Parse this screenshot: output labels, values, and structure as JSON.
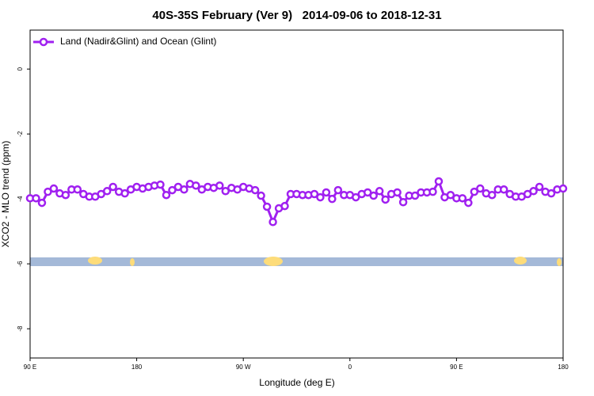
{
  "chart_data": {
    "type": "line",
    "title": "40S-35S February (Ver 9)   2014-09-06 to 2018-12-31",
    "xlabel": "Longitude (deg E)",
    "ylabel": "XCO2 - MLO trend (ppm)",
    "x": [
      90,
      95,
      100,
      105,
      110,
      115,
      120,
      125,
      130,
      135,
      140,
      145,
      150,
      155,
      160,
      165,
      170,
      175,
      180,
      185,
      190,
      195,
      200,
      205,
      210,
      215,
      220,
      225,
      230,
      235,
      240,
      245,
      250,
      255,
      260,
      265,
      270,
      275,
      280,
      285,
      290,
      295,
      300,
      305,
      310,
      315,
      320,
      325,
      330,
      335,
      340,
      345,
      350,
      355,
      360,
      365,
      370,
      375,
      380,
      385,
      390,
      395,
      400,
      405,
      410,
      415,
      420,
      425,
      430,
      435,
      440,
      445,
      450,
      455,
      460,
      465,
      470,
      475,
      480,
      485,
      490,
      495,
      500,
      505,
      510,
      515,
      520,
      525,
      530,
      535,
      540
    ],
    "series": [
      {
        "name": "Land (Nadir&Glint) and Ocean (Glint)",
        "color": "#a020f0",
        "values": [
          -3.98,
          -3.98,
          -4.12,
          -3.78,
          -3.68,
          -3.83,
          -3.88,
          -3.71,
          -3.71,
          -3.85,
          -3.93,
          -3.93,
          -3.85,
          -3.76,
          -3.63,
          -3.78,
          -3.83,
          -3.71,
          -3.63,
          -3.68,
          -3.63,
          -3.59,
          -3.56,
          -3.88,
          -3.73,
          -3.63,
          -3.71,
          -3.54,
          -3.59,
          -3.71,
          -3.63,
          -3.66,
          -3.59,
          -3.76,
          -3.66,
          -3.71,
          -3.63,
          -3.68,
          -3.73,
          -3.9,
          -4.24,
          -4.71,
          -4.29,
          -4.22,
          -3.85,
          -3.85,
          -3.88,
          -3.88,
          -3.85,
          -3.95,
          -3.8,
          -4.0,
          -3.73,
          -3.88,
          -3.88,
          -3.95,
          -3.85,
          -3.8,
          -3.9,
          -3.76,
          -4.02,
          -3.85,
          -3.8,
          -4.1,
          -3.9,
          -3.9,
          -3.8,
          -3.8,
          -3.78,
          -3.46,
          -3.95,
          -3.88,
          -3.98,
          -3.98,
          -4.12,
          -3.78,
          -3.68,
          -3.83,
          -3.88,
          -3.71,
          -3.71,
          -3.85,
          -3.93,
          -3.93,
          -3.85,
          -3.76,
          -3.63,
          -3.78,
          -3.83,
          -3.71,
          -3.68
        ]
      }
    ],
    "xlim": [
      90,
      540
    ],
    "xticks": [
      {
        "value": 90,
        "label": "90 E"
      },
      180,
      {
        "value": 270,
        "label": "90 W"
      },
      {
        "value": 360,
        "label": "0"
      },
      {
        "value": 450,
        "label": "90 E"
      },
      {
        "value": 540,
        "label": "180"
      }
    ],
    "ylim": [
      -8.9,
      1.2
    ],
    "yticks": [
      -8,
      -6,
      -4,
      -2,
      0
    ],
    "legend": "top-left"
  }
}
